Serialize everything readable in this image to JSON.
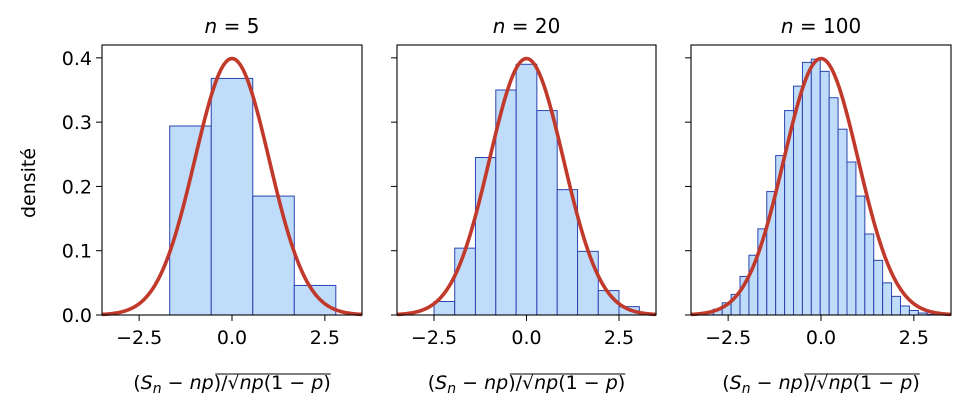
{
  "chart_data": [
    {
      "type": "bar",
      "title": "n = 5",
      "xlabel": "(S_n − np)/√np(1 − p)",
      "ylabel": "densité",
      "xlim": [
        -3.5,
        3.5
      ],
      "ylim": [
        0,
        0.42
      ],
      "xticks": [
        "−2.5",
        "0.0",
        "2.5"
      ],
      "yticks": [
        "0.0",
        "0.1",
        "0.2",
        "0.3",
        "0.4"
      ],
      "bin_edges": [
        -1.677,
        -0.559,
        0.559,
        1.677,
        2.795
      ],
      "values": [
        0.294,
        0.368,
        0.185,
        0.046
      ],
      "curve": "normal-density"
    },
    {
      "type": "bar",
      "title": "n = 20",
      "xlabel": "(S_n − np)/√np(1 − p)",
      "xlim": [
        -3.5,
        3.5
      ],
      "ylim": [
        0,
        0.42
      ],
      "xticks": [
        "−2.5",
        "0.0",
        "2.5"
      ],
      "bin_edges": [
        -2.5,
        -1.94,
        -1.38,
        -0.83,
        -0.28,
        0.28,
        0.83,
        1.38,
        1.94,
        2.5,
        3.05
      ],
      "values": [
        0.021,
        0.104,
        0.245,
        0.35,
        0.39,
        0.318,
        0.195,
        0.099,
        0.038,
        0.013
      ],
      "curve": "normal-density"
    },
    {
      "type": "bar",
      "title": "n = 100",
      "xlabel": "(S_n − np)/√np(1 − p)",
      "xlim": [
        -3.5,
        3.5
      ],
      "ylim": [
        0,
        0.42
      ],
      "xticks": [
        "−2.5",
        "0.0",
        "2.5"
      ],
      "bin_edges": [
        -3.13,
        -2.9,
        -2.66,
        -2.42,
        -2.18,
        -1.94,
        -1.7,
        -1.46,
        -1.22,
        -0.98,
        -0.74,
        -0.5,
        -0.26,
        -0.02,
        0.22,
        0.46,
        0.7,
        0.94,
        1.18,
        1.42,
        1.66,
        1.9,
        2.14,
        2.38,
        2.62,
        2.86,
        3.1
      ],
      "values": [
        0.004,
        0.009,
        0.019,
        0.032,
        0.06,
        0.093,
        0.134,
        0.192,
        0.248,
        0.318,
        0.356,
        0.393,
        0.398,
        0.379,
        0.338,
        0.289,
        0.238,
        0.185,
        0.126,
        0.085,
        0.05,
        0.029,
        0.014,
        0.007,
        0.003,
        0.001
      ],
      "curve": "normal-density"
    }
  ],
  "colors": {
    "bar_fill": "#bfdcfb",
    "bar_edge": "#2b44b0",
    "curve": "#c0392b"
  }
}
